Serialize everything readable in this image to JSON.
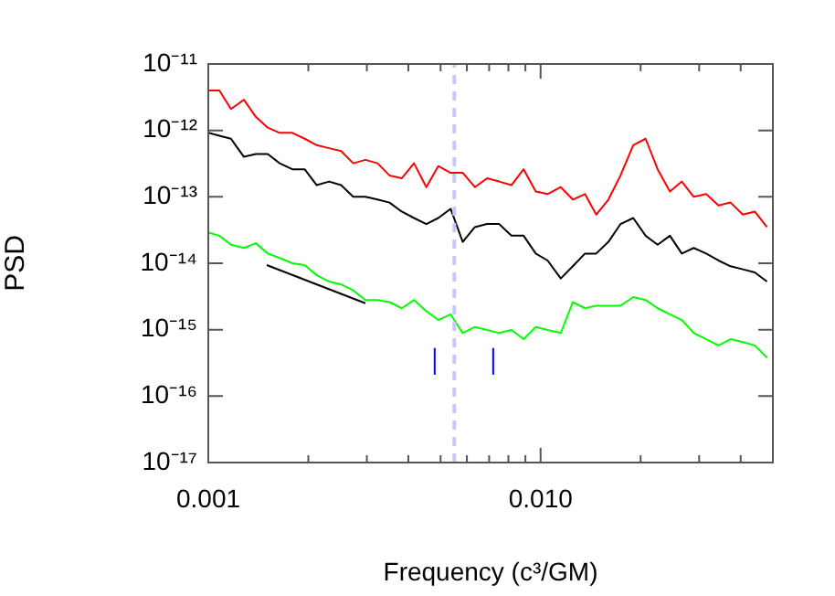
{
  "chart_data": {
    "type": "line",
    "xlabel": "Frequency (c³/GM)",
    "ylabel": "PSD",
    "log": "xy",
    "grid": false,
    "legend": false,
    "marker": "none",
    "line_style": "solid",
    "xlim": [
      0.001,
      0.05
    ],
    "ylim": [
      1e-17,
      1e-11
    ],
    "xticks": [
      {
        "value": 0.001,
        "label": "0.001"
      },
      {
        "value": 0.002,
        "label": null
      },
      {
        "value": 0.003,
        "label": null
      },
      {
        "value": 0.004,
        "label": null
      },
      {
        "value": 0.005,
        "label": null
      },
      {
        "value": 0.006,
        "label": null
      },
      {
        "value": 0.007,
        "label": null
      },
      {
        "value": 0.008,
        "label": null
      },
      {
        "value": 0.009,
        "label": null
      },
      {
        "value": 0.01,
        "label": "0.010"
      },
      {
        "value": 0.02,
        "label": null
      },
      {
        "value": 0.03,
        "label": null
      },
      {
        "value": 0.04,
        "label": null
      },
      {
        "value": 0.05,
        "label": null
      }
    ],
    "yticks": [
      {
        "value": 1e-17,
        "label": "10⁻¹⁷"
      },
      {
        "value": 1e-16,
        "label": "10⁻¹⁶"
      },
      {
        "value": 1e-15,
        "label": "10⁻¹⁵"
      },
      {
        "value": 1e-14,
        "label": "10⁻¹⁴"
      },
      {
        "value": 1e-13,
        "label": "10⁻¹³"
      },
      {
        "value": 1e-12,
        "label": "10⁻¹²"
      },
      {
        "value": 1e-11,
        "label": "10⁻¹¹"
      }
    ],
    "x": [
      0.001,
      0.00108,
      0.00117,
      0.00128,
      0.00139,
      0.00151,
      0.00164,
      0.00179,
      0.00195,
      0.00212,
      0.00231,
      0.00251,
      0.00273,
      0.00297,
      0.00323,
      0.00351,
      0.00382,
      0.00416,
      0.00453,
      0.00492,
      0.00536,
      0.00583,
      0.00634,
      0.0069,
      0.0075,
      0.00817,
      0.00889,
      0.00967,
      0.0105,
      0.0115,
      0.0125,
      0.0136,
      0.0147,
      0.016,
      0.0174,
      0.019,
      0.0207,
      0.0225,
      0.0245,
      0.0266,
      0.0289,
      0.0315,
      0.0343,
      0.0373,
      0.0406,
      0.0441,
      0.048
    ],
    "series": [
      {
        "type": "line",
        "color": "#c8c8f4",
        "line_style": "dashed",
        "x": [
          0.0055,
          0.0055
        ],
        "values": [
          1e-17,
          1e-11
        ]
      },
      {
        "color": "#ff0000",
        "values": [
          4e-12,
          4e-12,
          2.1e-12,
          2.9e-12,
          1.6e-12,
          1.1e-12,
          9.2e-13,
          9.2e-13,
          7.5e-13,
          6e-13,
          5.4e-13,
          4.9e-13,
          3.2e-13,
          3.6e-13,
          3.2e-13,
          2.1e-13,
          1.9e-13,
          3.2e-13,
          1.4e-13,
          2.9e-13,
          2.3e-13,
          2.3e-13,
          1.4e-13,
          1.9e-13,
          1.7e-13,
          1.5e-13,
          2.6e-13,
          1.2e-13,
          1.1e-13,
          1.4e-13,
          9.1e-14,
          1.1e-13,
          5.4e-14,
          9.1e-14,
          2.1e-13,
          6e-13,
          7.5e-13,
          2.6e-13,
          1.2e-13,
          1.7e-13,
          1e-13,
          1.1e-13,
          7.4e-14,
          8.2e-14,
          5.4e-14,
          6e-14,
          3.5e-14
        ]
      },
      {
        "color": "#000000",
        "values": [
          9.2e-13,
          8.3e-13,
          7.5e-13,
          4e-13,
          4.4e-13,
          4.4e-13,
          3.2e-13,
          2.6e-13,
          2.6e-13,
          1.5e-13,
          1.7e-13,
          1.5e-13,
          1e-13,
          1e-13,
          9.1e-14,
          8.2e-14,
          6e-14,
          4.8e-14,
          3.9e-14,
          4.8e-14,
          6.6e-14,
          2.1e-14,
          3.5e-14,
          3.9e-14,
          3.9e-14,
          2.6e-14,
          2.6e-14,
          1.4e-14,
          1.1e-14,
          5.9e-15,
          9e-15,
          1.4e-14,
          1.4e-14,
          2.1e-14,
          3.9e-14,
          4.8e-14,
          2.6e-14,
          1.9e-14,
          2.6e-14,
          1.4e-14,
          1.7e-14,
          1.4e-14,
          1.1e-14,
          9e-15,
          8.1e-15,
          7.3e-15,
          5.3e-15
        ]
      },
      {
        "color": "#00ff00",
        "values": [
          2.9e-14,
          2.6e-14,
          1.9e-14,
          1.7e-14,
          2e-14,
          1.4e-14,
          1.2e-14,
          1e-14,
          9.4e-15,
          6.6e-15,
          5.3e-15,
          4.8e-15,
          3.9e-15,
          2.8e-15,
          2.8e-15,
          2.6e-15,
          2.1e-15,
          2.8e-15,
          1.9e-15,
          1.4e-15,
          1.7e-15,
          8.9e-16,
          1.1e-15,
          9.9e-16,
          8.9e-16,
          9.9e-16,
          7.2e-16,
          1.1e-15,
          9.9e-16,
          8.9e-16,
          2.6e-15,
          2.1e-15,
          2.3e-15,
          2.3e-15,
          2.3e-15,
          3.1e-15,
          2.8e-15,
          2.1e-15,
          1.7e-15,
          1.4e-15,
          8.9e-16,
          7.2e-16,
          5.8e-16,
          7.2e-16,
          6.5e-16,
          5.8e-16,
          3.8e-16
        ]
      },
      {
        "type": "line",
        "color": "#000000",
        "x": [
          0.0015,
          0.00297
        ],
        "values": [
          9.4e-15,
          2.5e-15
        ]
      },
      {
        "type": "line",
        "color": "#0000ff",
        "x": [
          0.0048,
          0.0048
        ],
        "values": [
          2.1e-16,
          5.3e-16
        ]
      },
      {
        "type": "line",
        "color": "#0000ff",
        "x": [
          0.0072,
          0.0072
        ],
        "values": [
          2.1e-16,
          5.3e-16
        ]
      }
    ]
  }
}
